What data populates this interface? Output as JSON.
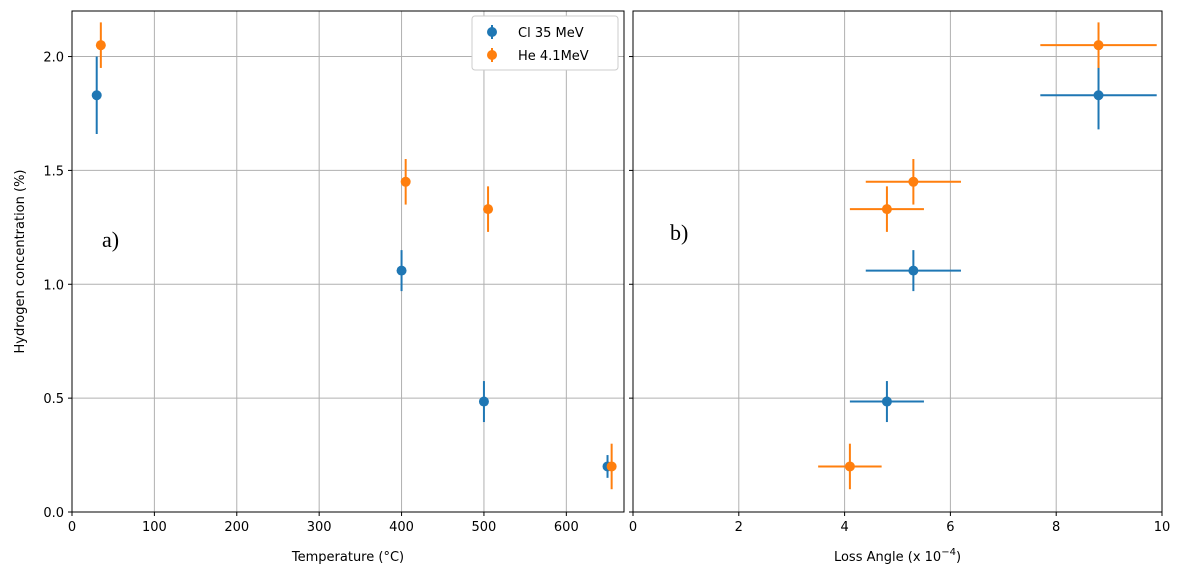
{
  "colors": {
    "cl": "#1f77b4",
    "he": "#ff7f0e",
    "grid": "#b0b0b0"
  },
  "chart_data": [
    {
      "type": "scatter",
      "panel_label": "a)",
      "xlabel": "Temperature (°C)",
      "ylabel": "Hydrogen concentration (%)",
      "xlim": [
        0,
        670
      ],
      "ylim": [
        0,
        2.2
      ],
      "xticks": [
        0,
        100,
        200,
        300,
        400,
        500,
        600
      ],
      "xtick_labels": [
        "0",
        "100",
        "200",
        "300",
        "400",
        "500",
        "600"
      ],
      "yticks": [
        0,
        0.5,
        1.0,
        1.5,
        2.0
      ],
      "ytick_labels": [
        "0.0",
        "0.5",
        "1.0",
        "1.5",
        "2.0"
      ],
      "grid": true,
      "legend": {
        "placement": "top-right",
        "entries": [
          "Cl 35 MeV",
          "He 4.1MeV"
        ]
      },
      "series": [
        {
          "name": "Cl 35 MeV",
          "color": "#1f77b4",
          "points": [
            {
              "x": 30,
              "y": 1.83,
              "yerr": 0.17
            },
            {
              "x": 400,
              "y": 1.06,
              "yerr": 0.09
            },
            {
              "x": 500,
              "y": 0.485,
              "yerr": 0.09
            },
            {
              "x": 650,
              "y": 0.2,
              "yerr": 0.05
            }
          ]
        },
        {
          "name": "He 4.1MeV",
          "color": "#ff7f0e",
          "points": [
            {
              "x": 35,
              "y": 2.05,
              "yerr": 0.1
            },
            {
              "x": 405,
              "y": 1.45,
              "yerr": 0.1
            },
            {
              "x": 505,
              "y": 1.33,
              "yerr": 0.1
            },
            {
              "x": 655,
              "y": 0.2,
              "yerr": 0.1
            }
          ]
        }
      ]
    },
    {
      "type": "scatter",
      "panel_label": "b)",
      "xlabel": "Loss Angle (x 10",
      "xlabel_sup": "−4",
      "xlabel_end": ")",
      "ylabel": "",
      "xlim": [
        0,
        10
      ],
      "ylim": [
        0,
        2.2
      ],
      "xticks": [
        0,
        2,
        4,
        6,
        8,
        10
      ],
      "xtick_labels": [
        "0",
        "2",
        "4",
        "6",
        "8",
        "10"
      ],
      "yticks": [
        0,
        0.5,
        1.0,
        1.5,
        2.0
      ],
      "grid": true,
      "series": [
        {
          "name": "Cl 35 MeV",
          "color": "#1f77b4",
          "points": [
            {
              "x": 8.8,
              "y": 1.83,
              "xerr": 1.1,
              "yerr": 0.15
            },
            {
              "x": 5.3,
              "y": 1.06,
              "xerr": 0.9,
              "yerr": 0.09
            },
            {
              "x": 4.8,
              "y": 0.485,
              "xerr": 0.7,
              "yerr": 0.09
            }
          ]
        },
        {
          "name": "He 4.1MeV",
          "color": "#ff7f0e",
          "points": [
            {
              "x": 8.8,
              "y": 2.05,
              "xerr": 1.1,
              "yerr": 0.1
            },
            {
              "x": 5.3,
              "y": 1.45,
              "xerr": 0.9,
              "yerr": 0.1
            },
            {
              "x": 4.8,
              "y": 1.33,
              "xerr": 0.7,
              "yerr": 0.1
            },
            {
              "x": 4.1,
              "y": 0.2,
              "xerr": 0.6,
              "yerr": 0.1
            }
          ]
        }
      ]
    }
  ]
}
